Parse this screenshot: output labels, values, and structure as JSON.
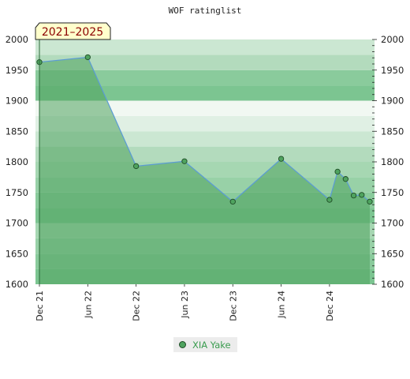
{
  "chart_data": {
    "type": "area",
    "title": "WOF ratinglist",
    "period_badge": "2021–2025",
    "x_tick_labels": [
      "Dec 21",
      "Jun 22",
      "Dec 22",
      "Jun 23",
      "Dec 23",
      "Jun 24",
      "Dec 24"
    ],
    "ylim": [
      1600,
      2000
    ],
    "y_ticks": [
      1600,
      1650,
      1700,
      1750,
      1800,
      1850,
      1900,
      1950,
      2000
    ],
    "right_axis": true,
    "series": [
      {
        "name": "XIA Yake",
        "color": "#4fa35f",
        "line_color": "#5b9bd5",
        "x": [
          "2021-12",
          "2022-06",
          "2022-12",
          "2023-06",
          "2023-12",
          "2024-06",
          "2024-12",
          "2025-01",
          "2025-02",
          "2025-03",
          "2025-04",
          "2025-05"
        ],
        "values": [
          1963,
          1971,
          1793,
          1801,
          1735,
          1805,
          1738,
          1784,
          1772,
          1745,
          1746,
          1735
        ]
      }
    ]
  },
  "legend": {
    "label": "XIA Yake"
  }
}
